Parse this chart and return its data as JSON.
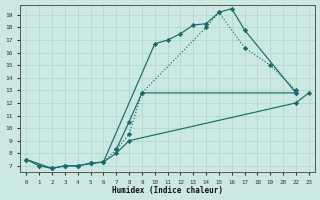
{
  "xlabel": "Humidex (Indice chaleur)",
  "bg_color": "#cce8e2",
  "grid_color": "#b0d4cc",
  "line_color": "#1a6b6b",
  "xlim": [
    -0.5,
    23.5
  ],
  "ylim": [
    6.5,
    19.8
  ],
  "xtick_vals": [
    0,
    1,
    2,
    3,
    4,
    5,
    6,
    7,
    8,
    9,
    10,
    11,
    12,
    13,
    14,
    15,
    16,
    17,
    18,
    19,
    20,
    22,
    23
  ],
  "xtick_labels": [
    "0",
    "1",
    "2",
    "3",
    "4",
    "5",
    "6",
    "7",
    "8",
    "9",
    "10",
    "11",
    "12",
    "13",
    "14",
    "15",
    "16",
    "17",
    "18",
    "19",
    "20",
    "22",
    "23"
  ],
  "ytick_vals": [
    7,
    8,
    9,
    10,
    11,
    12,
    13,
    14,
    15,
    16,
    17,
    18,
    19
  ],
  "curve1_x": [
    0,
    1,
    2,
    3,
    4,
    5,
    6,
    10,
    11,
    12,
    13,
    14,
    15,
    16,
    17,
    22
  ],
  "curve1_y": [
    7.5,
    7.0,
    6.8,
    7.0,
    7.0,
    7.2,
    7.3,
    16.7,
    17.0,
    17.5,
    18.2,
    18.3,
    19.2,
    19.5,
    17.8,
    12.8
  ],
  "curve1_style": "-",
  "curve2_x": [
    1,
    2,
    3,
    4,
    5,
    6,
    7,
    8,
    9,
    14,
    15,
    17,
    19,
    22
  ],
  "curve2_y": [
    7.0,
    6.8,
    7.0,
    7.0,
    7.2,
    7.3,
    8.3,
    9.5,
    12.8,
    18.0,
    19.2,
    16.4,
    15.0,
    13.0
  ],
  "curve2_style": "dotted",
  "curve3_x": [
    0,
    2,
    3,
    4,
    5,
    6,
    7,
    8,
    22,
    23
  ],
  "curve3_y": [
    7.5,
    6.8,
    7.0,
    7.0,
    7.2,
    7.3,
    8.0,
    9.0,
    12.0,
    12.8
  ],
  "curve3_style": "-",
  "curve4_x": [
    7,
    8,
    9,
    22
  ],
  "curve4_y": [
    8.3,
    10.5,
    12.8,
    12.8
  ],
  "curve4_style": "-"
}
